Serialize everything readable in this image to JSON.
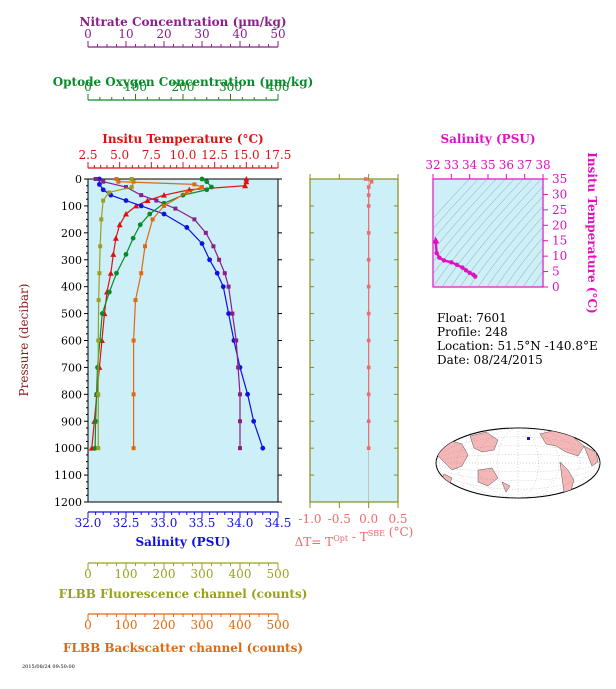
{
  "colors": {
    "nitrate": "#8b1e8b",
    "oxygen": "#0a8a2a",
    "temperature": "#e01010",
    "salinity": "#1010e0",
    "fluorescence": "#9aa020",
    "backscatter": "#e06a10",
    "delta_t": "#f06a6a",
    "ts_magenta": "#e010c0",
    "panel_bg": "#cdeff8",
    "frame_olive": "#8b8b1e"
  },
  "info": {
    "float": "Float:  7601",
    "profile": "Profile:  248",
    "location": "Location:  51.5°N  -140.8°E",
    "date": "Date:  08/24/2015"
  },
  "footer_text": "2015/08/24 09:50:00",
  "chart_data": [
    {
      "type": "line",
      "panel": "main_profiles",
      "ylabel": "Pressure (decibar)",
      "ylim": [
        1200,
        0
      ],
      "yticks": [
        "0",
        "100",
        "200",
        "300",
        "400",
        "500",
        "600",
        "700",
        "800",
        "900",
        "1000",
        "1100",
        "1200"
      ],
      "axes": [
        {
          "key": "nitrate",
          "label": "Nitrate Concentration (µm/kg)",
          "range": [
            0,
            50
          ],
          "ticks": [
            "0",
            "10",
            "20",
            "30",
            "40",
            "50"
          ],
          "position": "top-1"
        },
        {
          "key": "oxygen",
          "label": "Optode Oxygen Concentration (µm/kg)",
          "range": [
            0,
            400
          ],
          "ticks": [
            "0",
            "100",
            "200",
            "300",
            "400"
          ],
          "position": "top-2"
        },
        {
          "key": "temperature",
          "label": "Insitu Temperature (°C)",
          "range": [
            2.5,
            17.5
          ],
          "ticks": [
            "2.5",
            "5.0",
            "7.5",
            "10.0",
            "12.5",
            "15.0",
            "17.5"
          ],
          "position": "top-3"
        },
        {
          "key": "salinity",
          "label": "Salinity (PSU)",
          "range": [
            32.0,
            34.5
          ],
          "ticks": [
            "32.0",
            "32.5",
            "33.0",
            "33.5",
            "34.0",
            "34.5"
          ],
          "position": "bottom-1"
        },
        {
          "key": "fluorescence",
          "label": "FLBB Fluorescence channel (counts)",
          "range": [
            0,
            500
          ],
          "ticks": [
            "0",
            "100",
            "200",
            "300",
            "400",
            "500"
          ],
          "position": "bottom-2"
        },
        {
          "key": "backscatter",
          "label": "FLBB Backscatter channel (counts)",
          "range": [
            0,
            500
          ],
          "ticks": [
            "0",
            "100",
            "200",
            "300",
            "400",
            "500"
          ],
          "position": "bottom-3"
        }
      ],
      "series": [
        {
          "key": "temperature",
          "points": [
            [
              15.0,
              0
            ],
            [
              15.0,
              10
            ],
            [
              14.9,
              25
            ],
            [
              10.5,
              40
            ],
            [
              8.5,
              60
            ],
            [
              7.2,
              80
            ],
            [
              6.3,
              100
            ],
            [
              5.5,
              130
            ],
            [
              5.0,
              170
            ],
            [
              4.7,
              220
            ],
            [
              4.5,
              280
            ],
            [
              4.3,
              350
            ],
            [
              4.0,
              420
            ],
            [
              3.8,
              500
            ],
            [
              3.6,
              600
            ],
            [
              3.4,
              700
            ],
            [
              3.2,
              800
            ],
            [
              3.0,
              900
            ],
            [
              2.8,
              1000
            ]
          ]
        },
        {
          "key": "salinity",
          "points": [
            [
              32.15,
              0
            ],
            [
              32.15,
              20
            ],
            [
              32.2,
              40
            ],
            [
              32.3,
              60
            ],
            [
              32.5,
              80
            ],
            [
              32.7,
              100
            ],
            [
              33.0,
              130
            ],
            [
              33.3,
              180
            ],
            [
              33.5,
              240
            ],
            [
              33.6,
              300
            ],
            [
              33.7,
              350
            ],
            [
              33.78,
              400
            ],
            [
              33.85,
              500
            ],
            [
              33.92,
              600
            ],
            [
              34.0,
              700
            ],
            [
              34.1,
              800
            ],
            [
              34.18,
              900
            ],
            [
              34.3,
              1000
            ]
          ]
        },
        {
          "key": "nitrate",
          "points": [
            [
              2,
              0
            ],
            [
              4,
              10
            ],
            [
              10,
              30
            ],
            [
              14,
              60
            ],
            [
              18,
              80
            ],
            [
              23,
              110
            ],
            [
              28,
              150
            ],
            [
              31,
              200
            ],
            [
              33,
              250
            ],
            [
              34.5,
              300
            ],
            [
              36,
              350
            ],
            [
              37,
              400
            ],
            [
              38,
              500
            ],
            [
              39,
              600
            ],
            [
              39.5,
              700
            ],
            [
              40,
              800
            ],
            [
              40,
              900
            ],
            [
              40,
              1000
            ]
          ]
        },
        {
          "key": "oxygen",
          "points": [
            [
              240,
              0
            ],
            [
              250,
              10
            ],
            [
              260,
              30
            ],
            [
              250,
              40
            ],
            [
              200,
              60
            ],
            [
              160,
              90
            ],
            [
              130,
              130
            ],
            [
              110,
              170
            ],
            [
              95,
              220
            ],
            [
              80,
              280
            ],
            [
              60,
              350
            ],
            [
              45,
              420
            ],
            [
              30,
              500
            ],
            [
              25,
              600
            ],
            [
              20,
              700
            ],
            [
              18,
              800
            ],
            [
              16,
              900
            ],
            [
              15,
              1000
            ]
          ]
        },
        {
          "key": "fluorescence",
          "points": [
            [
              115,
              0
            ],
            [
              120,
              10
            ],
            [
              115,
              30
            ],
            [
              55,
              50
            ],
            [
              40,
              80
            ],
            [
              35,
              150
            ],
            [
              32,
              250
            ],
            [
              30,
              350
            ],
            [
              28,
              450
            ],
            [
              27,
              600
            ],
            [
              27,
              800
            ],
            [
              27,
              1000
            ]
          ]
        },
        {
          "key": "backscatter",
          "points": [
            [
              75,
              0
            ],
            [
              80,
              10
            ],
            [
              280,
              20
            ],
            [
              300,
              30
            ],
            [
              260,
              50
            ],
            [
              200,
              100
            ],
            [
              170,
              150
            ],
            [
              150,
              250
            ],
            [
              140,
              350
            ],
            [
              125,
              450
            ],
            [
              120,
              600
            ],
            [
              120,
              800
            ],
            [
              120,
              1000
            ]
          ]
        }
      ]
    },
    {
      "type": "line",
      "panel": "delta_t",
      "xlabel": "ΔT= T",
      "xlabel_sup1": "Opt",
      "xlabel_mid": " - T",
      "xlabel_sup2": "SBE",
      "xlabel_unit": " (°C)",
      "xlim": [
        -1.0,
        0.5
      ],
      "xticks": [
        "-1.0",
        "-0.5",
        "0.0",
        "0.5"
      ],
      "ylim": [
        1200,
        0
      ],
      "series": [
        {
          "name": "ΔT",
          "points": [
            [
              -0.05,
              0
            ],
            [
              0.05,
              10
            ],
            [
              0.0,
              30
            ],
            [
              0.0,
              60
            ],
            [
              0.0,
              100
            ],
            [
              0.0,
              200
            ],
            [
              0.0,
              300
            ],
            [
              0.0,
              400
            ],
            [
              0.0,
              500
            ],
            [
              0.0,
              600
            ],
            [
              0.0,
              700
            ],
            [
              0.0,
              800
            ],
            [
              0.0,
              900
            ],
            [
              0.0,
              1000
            ]
          ]
        }
      ]
    },
    {
      "type": "scatter",
      "panel": "ts_diagram",
      "title": "Salinity (PSU)",
      "xlim": [
        32,
        38
      ],
      "xticks": [
        "32",
        "33",
        "34",
        "35",
        "36",
        "37",
        "38"
      ],
      "ylabel": "Insitu Temperature (°C)",
      "ylim": [
        0,
        35
      ],
      "yticks": [
        "0",
        "5",
        "10",
        "15",
        "20",
        "25",
        "30",
        "35"
      ],
      "series": [
        {
          "name": "T-S",
          "points": [
            [
              32.15,
              15.0
            ],
            [
              32.15,
              14.5
            ],
            [
              32.2,
              11.0
            ],
            [
              32.35,
              9.5
            ],
            [
              32.6,
              8.6
            ],
            [
              33.0,
              8.0
            ],
            [
              33.3,
              7.2
            ],
            [
              33.6,
              6.3
            ],
            [
              33.8,
              5.4
            ],
            [
              34.0,
              4.6
            ],
            [
              34.2,
              4.0
            ],
            [
              34.3,
              3.4
            ]
          ]
        }
      ]
    }
  ],
  "map": {
    "marker_color": "#1010e0"
  }
}
